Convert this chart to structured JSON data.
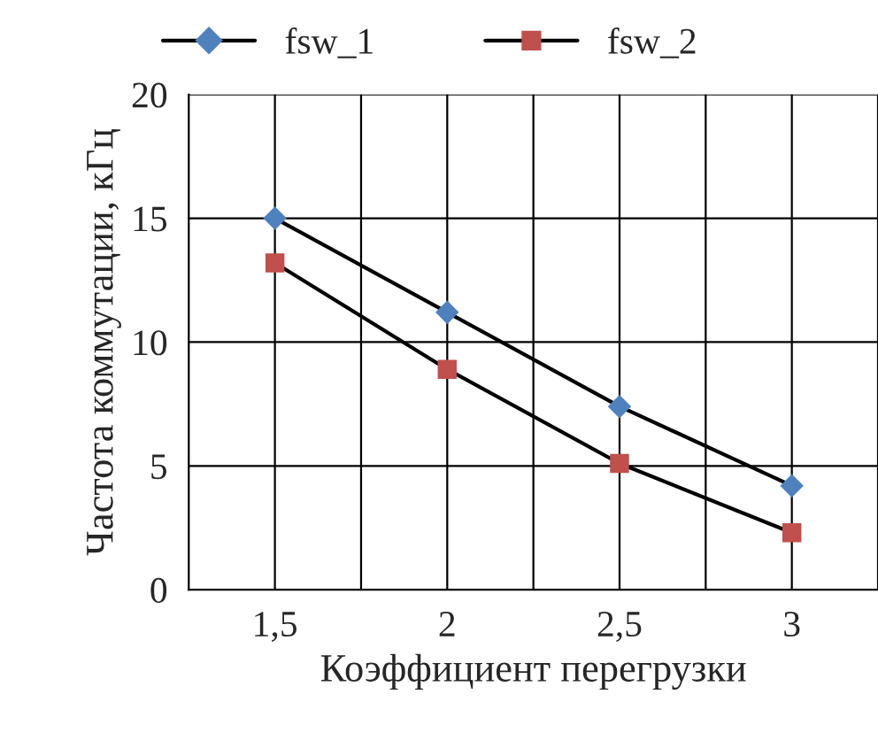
{
  "chart_data": {
    "type": "line",
    "xlabel": "Коэффициент перегрузки",
    "ylabel": "Частота коммутации, кГц",
    "x": [
      1.5,
      2,
      2.5,
      3
    ],
    "series": [
      {
        "name": "fsw_1",
        "color": "#4f81bd",
        "marker": "diamond",
        "values": [
          15,
          11.2,
          7.4,
          4.2
        ]
      },
      {
        "name": "fsw_2",
        "color": "#c0504d",
        "marker": "square",
        "values": [
          13.2,
          8.9,
          5.1,
          2.3
        ]
      }
    ],
    "xlim": [
      1.25,
      3.25
    ],
    "xticks": [
      {
        "value": 1.5,
        "label": "1,5"
      },
      {
        "value": 1.75,
        "label": null
      },
      2,
      {
        "value": 2.25,
        "label": null
      },
      {
        "value": 2.5,
        "label": "2,5"
      },
      {
        "value": 2.75,
        "label": null
      },
      3,
      {
        "value": 3.25,
        "label": null
      }
    ],
    "ylim": [
      0,
      20
    ],
    "yticks": [
      0,
      5,
      10,
      15,
      20
    ],
    "grid": true,
    "legend": "top",
    "line_style": "solid"
  }
}
